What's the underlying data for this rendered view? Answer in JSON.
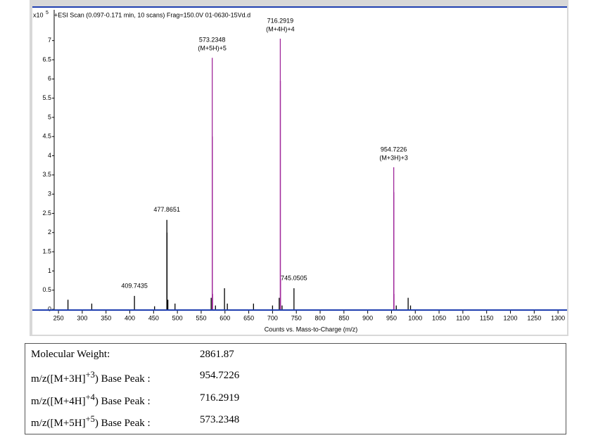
{
  "chart_data": {
    "type": "stick",
    "title": "+ESI Scan (0.097-0.171 min, 10 scans) Frag=150.0V 01-0630-15Vd.d",
    "y_scale_label": "x10",
    "y_scale_exponent": "5",
    "x_label": "Counts vs. Mass-to-Charge (m/z)",
    "xlim": [
      241,
      1319
    ],
    "ylim": [
      0,
      7.8
    ],
    "xticks": [
      250,
      300,
      350,
      400,
      450,
      500,
      550,
      600,
      650,
      700,
      750,
      800,
      850,
      900,
      950,
      1000,
      1050,
      1100,
      1150,
      1200,
      1250,
      1300
    ],
    "yticks": [
      0,
      0.5,
      1,
      1.5,
      2,
      2.5,
      3,
      3.5,
      4,
      4.5,
      5,
      5.5,
      6,
      6.5,
      7
    ],
    "labeled_peaks": [
      {
        "x": 409.7435,
        "value": 0.35,
        "color": "#000000"
      },
      {
        "x": 477.8651,
        "value": 2.33,
        "color": "#000000"
      },
      {
        "x": 573.2348,
        "value": 6.55,
        "color": "#a0289b",
        "ion": "(M+5H)+5"
      },
      {
        "x": 716.2919,
        "value": 7.05,
        "color": "#a0289b",
        "ion": "(M+4H)+4"
      },
      {
        "x": 745.0505,
        "value": 0.55,
        "color": "#000000"
      },
      {
        "x": 954.7226,
        "value": 3.7,
        "color": "#a0289b",
        "ion": "(M+3H)+3"
      }
    ],
    "minor_peaks": [
      {
        "x": 270,
        "value": 0.25,
        "color": "#000000"
      },
      {
        "x": 320,
        "value": 0.15,
        "color": "#000000"
      },
      {
        "x": 452,
        "value": 0.08,
        "color": "#000000"
      },
      {
        "x": 478.2,
        "value": 2.0,
        "color": "#000000"
      },
      {
        "x": 480,
        "value": 0.25,
        "color": "#000000"
      },
      {
        "x": 495,
        "value": 0.15,
        "color": "#000000"
      },
      {
        "x": 571,
        "value": 0.3,
        "color": "#000000"
      },
      {
        "x": 573.5,
        "value": 4.5,
        "color": "#a0289b"
      },
      {
        "x": 574,
        "value": 0.4,
        "color": "#a0289b"
      },
      {
        "x": 580,
        "value": 0.1,
        "color": "#000000"
      },
      {
        "x": 599,
        "value": 0.55,
        "color": "#000000"
      },
      {
        "x": 605,
        "value": 0.15,
        "color": "#000000"
      },
      {
        "x": 660,
        "value": 0.15,
        "color": "#000000"
      },
      {
        "x": 700,
        "value": 0.1,
        "color": "#000000"
      },
      {
        "x": 714,
        "value": 0.3,
        "color": "#000000"
      },
      {
        "x": 716.5,
        "value": 5.95,
        "color": "#a0289b"
      },
      {
        "x": 716.8,
        "value": 0.8,
        "color": "#a0289b"
      },
      {
        "x": 720,
        "value": 0.1,
        "color": "#000000"
      },
      {
        "x": 955.0,
        "value": 3.05,
        "color": "#a0289b"
      },
      {
        "x": 955.3,
        "value": 0.4,
        "color": "#a0289b"
      },
      {
        "x": 960,
        "value": 0.1,
        "color": "#000000"
      },
      {
        "x": 985,
        "value": 0.3,
        "color": "#000000"
      },
      {
        "x": 990,
        "value": 0.1,
        "color": "#000000"
      }
    ]
  },
  "table": {
    "rows": [
      {
        "label": "Molecular Weight:",
        "value": "2861.87"
      },
      {
        "pre": "m/z([M+3H]",
        "sup": "+3",
        "post": ") Base Peak :",
        "value": "954.7226"
      },
      {
        "pre": "m/z([M+4H]",
        "sup": "+4",
        "post": ") Base Peak :",
        "value": "716.2919"
      },
      {
        "pre": "m/z([M+5H]",
        "sup": "+5",
        "post": ") Base Peak :",
        "value": "573.2348"
      }
    ]
  }
}
